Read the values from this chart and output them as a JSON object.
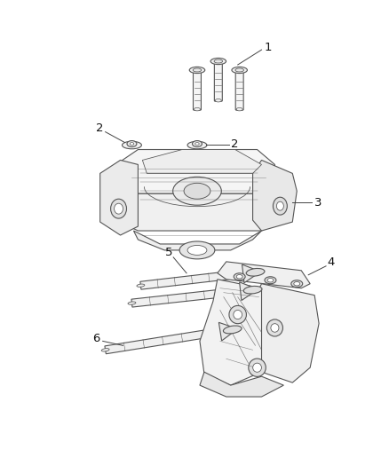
{
  "bg_color": "#ffffff",
  "line_color": "#555555",
  "fig_width": 4.38,
  "fig_height": 5.33,
  "dpi": 100,
  "callout_fontsize": 9.5
}
